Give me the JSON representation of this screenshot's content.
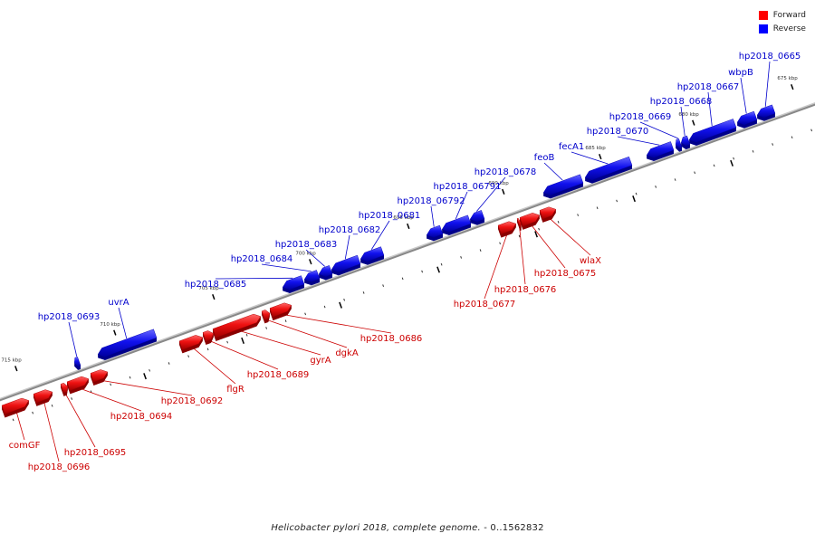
{
  "legend": [
    {
      "label": "Forward",
      "color": "#ff0000"
    },
    {
      "label": "Reverse",
      "color": "#0000ff"
    }
  ],
  "caption": {
    "organism": "Helicobacter pylori 2018, complete genome.",
    "range": " - 0..1562832"
  },
  "colors": {
    "forward": "#ee1111",
    "reverse": "#1111ee",
    "forward_label": "#cc0000",
    "reverse_label": "#0000cc",
    "backbone": "#888888"
  },
  "ticks": [
    "675 kbp",
    "680 kbp",
    "685 kbp",
    "690 kbp",
    "695 kbp",
    "700 kbp",
    "705 kbp",
    "710 kbp",
    "715 kbp"
  ],
  "reverse_genes": [
    "hp2018_0665",
    "wbpB",
    "hp2018_0667",
    "hp2018_0668",
    "hp2018_0669",
    "hp2018_0670",
    "fecA1",
    "feoB",
    "hp2018_0678",
    "hp2018_06791",
    "hp2018_06792",
    "hp2018_0681",
    "hp2018_0682",
    "hp2018_0683",
    "hp2018_0684",
    "hp2018_0685",
    "uvrA",
    "hp2018_0693"
  ],
  "forward_genes": [
    "wlaX",
    "hp2018_0675",
    "hp2018_0676",
    "hp2018_0677",
    "hp2018_0686",
    "dgkA",
    "gyrA",
    "hp2018_0689",
    "flgR",
    "hp2018_0692",
    "hp2018_0694",
    "hp2018_0695",
    "comGF",
    "hp2018_0696"
  ]
}
